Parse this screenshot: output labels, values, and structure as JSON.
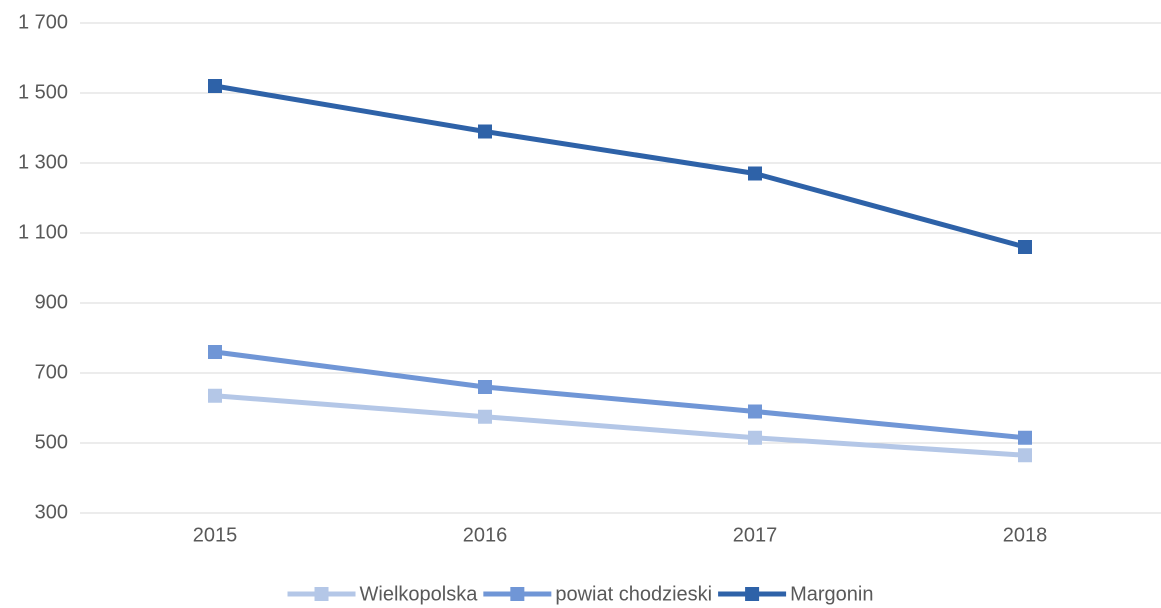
{
  "chart_data": {
    "type": "line",
    "categories": [
      "2015",
      "2016",
      "2017",
      "2018"
    ],
    "series": [
      {
        "name": "Wielkopolska",
        "color": "#b4c7e7",
        "values": [
          635,
          575,
          515,
          465
        ]
      },
      {
        "name": "powiat chodzieski",
        "color": "#7096d6",
        "values": [
          760,
          660,
          590,
          515
        ]
      },
      {
        "name": "Margonin",
        "color": "#2e62a8",
        "values": [
          1520,
          1390,
          1270,
          1060
        ]
      }
    ],
    "ylim": [
      300,
      1700
    ],
    "yticks": [
      300,
      500,
      700,
      900,
      {
        "value": 1100,
        "label": "1 100"
      },
      {
        "value": 1300,
        "label": "1 300"
      },
      {
        "value": 1500,
        "label": "1 500"
      },
      {
        "value": 1700,
        "label": "1 700"
      }
    ],
    "grid": true,
    "legend": "bottom"
  }
}
